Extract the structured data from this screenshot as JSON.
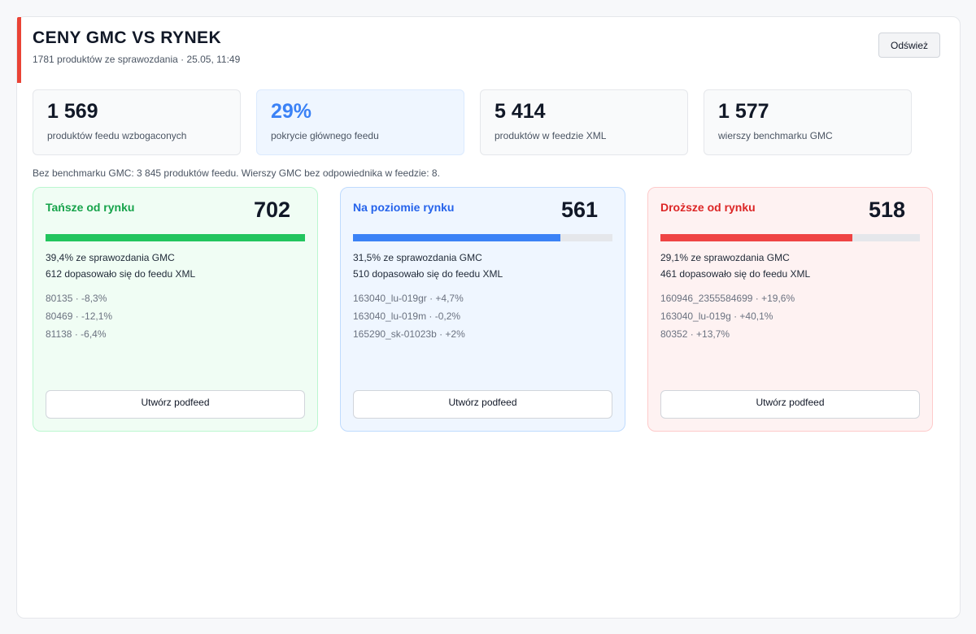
{
  "header": {
    "title": "CENY GMC VS RYNEK",
    "subtitle": "1781 produktów ze sprawozdania · 25.05, 11:49",
    "refresh_label": "Odśwież",
    "accent_color": "#ea4335"
  },
  "stats": [
    {
      "value": "1 569",
      "label": "produktów feedu wzbogaconych"
    },
    {
      "value": "29%",
      "label": "pokrycie głównego feedu"
    },
    {
      "value": "5 414",
      "label": "produktów w feedzie XML"
    },
    {
      "value": "1 577",
      "label": "wierszy benchmarku GMC"
    }
  ],
  "note": "Bez benchmarku GMC: 3 845 produktów feedu. Wierszy GMC bez odpowiednika w feedzie: 8.",
  "cards": [
    {
      "title": "Tańsze od rynku",
      "count": "702",
      "fill_fraction": 1.0,
      "line1": "39,4% ze sprawozdania GMC",
      "line2": "612 dopasowało się do feedu XML",
      "items": [
        "80135 · -8,3%",
        "80469 · -12,1%",
        "81138 · -6,4%"
      ],
      "button_label": "Utwórz podfeed",
      "color": "#22c55e"
    },
    {
      "title": "Na poziomie rynku",
      "count": "561",
      "fill_fraction": 0.8,
      "line1": "31,5% ze sprawozdania GMC",
      "line2": "510 dopasowało się do feedu XML",
      "items": [
        "163040_lu-019gr · +4,7%",
        "163040_lu-019m · -0,2%",
        "165290_sk-01023b · +2%"
      ],
      "button_label": "Utwórz podfeed",
      "color": "#3b82f6"
    },
    {
      "title": "Droższe od rynku",
      "count": "518",
      "fill_fraction": 0.74,
      "line1": "29,1% ze sprawozdania GMC",
      "line2": "461 dopasowało się do feedu XML",
      "items": [
        "160946_2355584699 · +19,6%",
        "163040_lu-019g · +40,1%",
        "80352 · +13,7%"
      ],
      "button_label": "Utwórz podfeed",
      "color": "#ef4444"
    }
  ]
}
